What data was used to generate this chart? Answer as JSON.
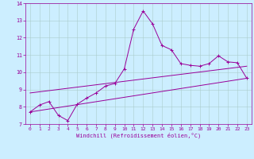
{
  "xlabel": "Windchill (Refroidissement éolien,°C)",
  "bg_color": "#cceeff",
  "line_color": "#990099",
  "grid_color": "#aacccc",
  "xlim": [
    -0.5,
    23.5
  ],
  "ylim": [
    7,
    14
  ],
  "xticks": [
    0,
    1,
    2,
    3,
    4,
    5,
    6,
    7,
    8,
    9,
    10,
    11,
    12,
    13,
    14,
    15,
    16,
    17,
    18,
    19,
    20,
    21,
    22,
    23
  ],
  "yticks": [
    7,
    8,
    9,
    10,
    11,
    12,
    13,
    14
  ],
  "series1_x": [
    0,
    1,
    2,
    3,
    4,
    5,
    6,
    7,
    8,
    9,
    10,
    11,
    12,
    13,
    14,
    15,
    16,
    17,
    18,
    19,
    20,
    21,
    22,
    23
  ],
  "series1_y": [
    7.7,
    8.1,
    8.3,
    7.5,
    7.2,
    8.15,
    8.5,
    8.8,
    9.2,
    9.35,
    10.2,
    12.5,
    13.55,
    12.8,
    11.55,
    11.3,
    10.5,
    10.4,
    10.35,
    10.5,
    10.95,
    10.6,
    10.55,
    9.65
  ],
  "series2_x": [
    0,
    23
  ],
  "series2_y": [
    7.7,
    9.65
  ],
  "series3_x": [
    0,
    23
  ],
  "series3_y": [
    8.8,
    10.35
  ],
  "tick_fontsize": 4.5,
  "xlabel_fontsize": 5.0,
  "marker_size": 2.5,
  "line_width": 0.7
}
